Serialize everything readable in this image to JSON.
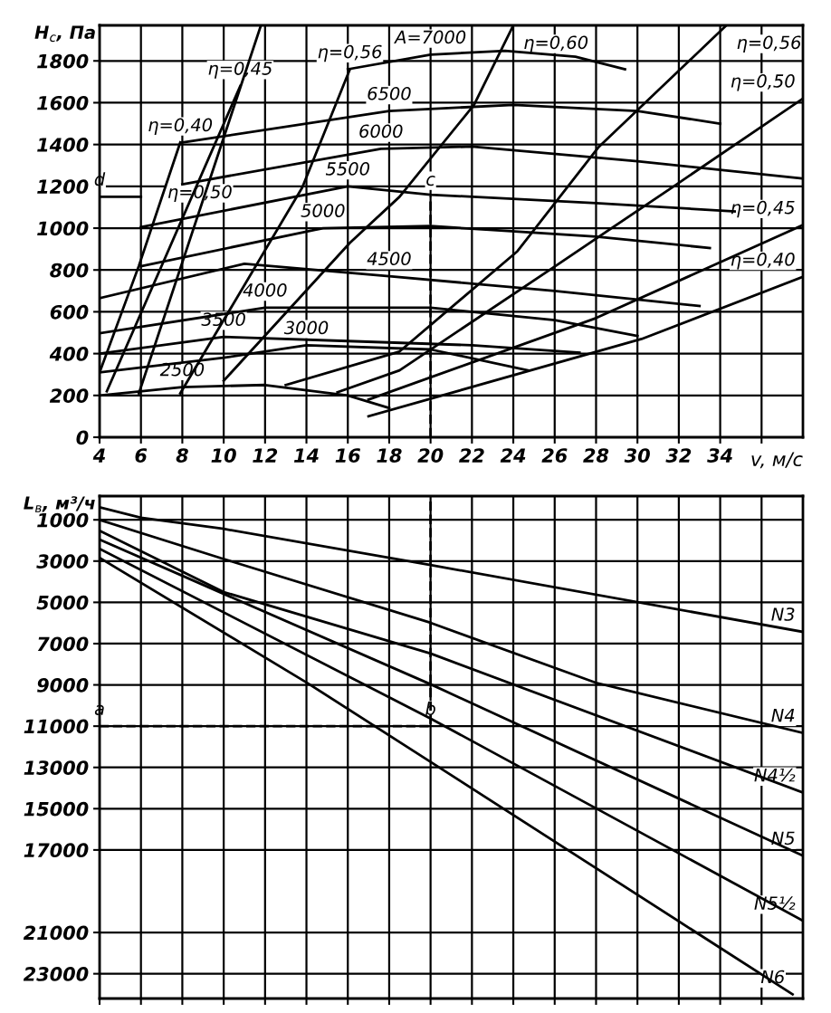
{
  "chart_data": [
    {
      "type": "line",
      "xlabel": "v, м/с",
      "ylabel": "H$_{с}$, Па",
      "xlim": [
        4,
        38
      ],
      "ylim": [
        0,
        1970
      ],
      "xticks": [
        4,
        6,
        8,
        10,
        12,
        14,
        16,
        18,
        20,
        22,
        24,
        26,
        28,
        30,
        32,
        34,
        {
          "value": 36,
          "label": null
        }
      ],
      "yticks": [
        0,
        200,
        400,
        600,
        800,
        1000,
        1200,
        1400,
        1600,
        1800
      ],
      "grid": true,
      "series": [
        {
          "color": "#000000",
          "x": [
            4,
            8,
            12,
            16,
            18
          ],
          "values": [
            200,
            240,
            250,
            200,
            140
          ]
        },
        {
          "color": "#000000",
          "x": [
            4,
            10,
            14,
            20,
            24.7
          ],
          "values": [
            310,
            380,
            440,
            420,
            320
          ]
        },
        {
          "color": "#000000",
          "x": [
            4,
            10,
            16,
            22,
            27.2
          ],
          "values": [
            400,
            480,
            460,
            440,
            405
          ]
        },
        {
          "color": "#000000",
          "x": [
            4,
            12,
            20,
            26,
            30
          ],
          "values": [
            497,
            620,
            620,
            560,
            484
          ]
        },
        {
          "color": "#000000",
          "x": [
            4,
            11,
            18,
            26,
            33
          ],
          "values": [
            665,
            830,
            770,
            700,
            628
          ]
        },
        {
          "color": "#000000",
          "x": [
            6,
            14.8,
            20,
            28,
            33.5
          ],
          "values": [
            818,
            1000,
            1010,
            960,
            905
          ]
        },
        {
          "color": "#000000",
          "x": [
            6,
            16,
            20,
            28,
            34.7
          ],
          "values": [
            1005,
            1200,
            1160,
            1120,
            1080
          ]
        },
        {
          "color": "#000000",
          "x": [
            8,
            17.6,
            22,
            30,
            37.9
          ],
          "values": [
            1210,
            1380,
            1390,
            1320,
            1238
          ]
        },
        {
          "color": "#000000",
          "x": [
            8,
            18,
            24,
            30,
            34
          ],
          "values": [
            1410,
            1560,
            1590,
            1560,
            1500
          ]
        },
        {
          "color": "#000000",
          "x": [
            16,
            20,
            23.6,
            27,
            29.4
          ],
          "values": [
            1760,
            1830,
            1848,
            1820,
            1760
          ]
        },
        {
          "color": "#000000",
          "x": [
            4,
            5.9,
            7.9
          ],
          "values": [
            310,
            820,
            1410
          ]
        },
        {
          "color": "#000000",
          "x": [
            4.35,
            10.8
          ],
          "values": [
            220,
            1680
          ]
        },
        {
          "color": "#000000",
          "x": [
            5.9,
            8.85,
            11.8
          ],
          "values": [
            210,
            1090,
            1970
          ]
        },
        {
          "color": "#000000",
          "x": [
            7.9,
            13.8,
            16.1
          ],
          "values": [
            210,
            1195,
            1760
          ]
        },
        {
          "color": "#000000",
          "x": [
            10,
            16.1,
            18.5,
            22.1,
            24
          ],
          "values": [
            270,
            930,
            1150,
            1590,
            1970
          ]
        },
        {
          "color": "#000000",
          "x": [
            13,
            18.5,
            24.2,
            28.1,
            34.3
          ],
          "values": [
            250,
            410,
            890,
            1385,
            1970
          ]
        },
        {
          "color": "#000000",
          "x": [
            15.5,
            18.5,
            26.2,
            31.9,
            38
          ],
          "values": [
            215,
            320,
            830,
            1210,
            1620
          ]
        },
        {
          "color": "#000000",
          "x": [
            17,
            28,
            38
          ],
          "values": [
            180,
            570,
            1015
          ]
        },
        {
          "color": "#000000",
          "x": [
            17,
            30.2,
            38
          ],
          "values": [
            100,
            470,
            767
          ]
        },
        {
          "color": "#000000",
          "line_style": "dashed",
          "x": [
            20,
            20
          ],
          "values": [
            0,
            1150
          ]
        },
        {
          "color": "#000000",
          "line_style": "solid",
          "x": [
            4,
            6
          ],
          "values": [
            1150,
            1150
          ]
        }
      ],
      "annotations": [
        {
          "text": "A=7000",
          "x": 20,
          "y": 1830
        },
        {
          "text": "6500",
          "x": 18,
          "y": 1560
        },
        {
          "text": "6000",
          "x": 17.6,
          "y": 1380
        },
        {
          "text": "5500",
          "x": 16,
          "y": 1200
        },
        {
          "text": "5000",
          "x": 14.8,
          "y": 1000
        },
        {
          "text": "4500",
          "x": 18,
          "y": 770
        },
        {
          "text": "4000",
          "x": 12,
          "y": 620
        },
        {
          "text": "3500",
          "x": 10,
          "y": 480
        },
        {
          "text": "3000",
          "x": 14,
          "y": 440
        },
        {
          "text": "2500",
          "x": 8,
          "y": 240
        },
        {
          "text": "η=0,40",
          "x": 7.9,
          "y": 1410
        },
        {
          "text": "η=0,45",
          "x": 10.8,
          "y": 1680
        },
        {
          "text": "η=0,50",
          "x": 8.85,
          "y": 1090
        },
        {
          "text": "η=0,56",
          "x": 16.1,
          "y": 1760
        },
        {
          "text": "η=0,60",
          "x": 24,
          "y": 1970
        },
        {
          "text": "η=0,56",
          "x": 34.3,
          "y": 1970
        },
        {
          "text": "η=0,50",
          "x": 38,
          "y": 1620
        },
        {
          "text": "η=0,45",
          "x": 38,
          "y": 1015
        },
        {
          "text": "η=0,40",
          "x": 38,
          "y": 767
        },
        {
          "text": "c",
          "x": 20,
          "y": 1150
        },
        {
          "text": "d",
          "x": 4,
          "y": 1150
        }
      ]
    },
    {
      "type": "line",
      "ylabel": "L$_{в}$, м³/ч",
      "xlim": [
        4,
        38
      ],
      "ylim": [
        24200,
        -150
      ],
      "tick_labels": "y",
      "xticks": [
        4,
        6,
        8,
        10,
        12,
        14,
        16,
        18,
        20,
        22,
        24,
        26,
        28,
        30,
        32,
        34,
        36
      ],
      "yticks": [
        1000,
        3000,
        5000,
        7000,
        9000,
        11000,
        13000,
        15000,
        17000,
        21000,
        23000
      ],
      "grid": true,
      "series": [
        {
          "color": "#000000",
          "x": [
            4,
            6,
            10,
            20,
            38
          ],
          "values": [
            390,
            900,
            1440,
            3190,
            6430
          ]
        },
        {
          "color": "#000000",
          "x": [
            4,
            10,
            20,
            28,
            38
          ],
          "values": [
            1000,
            2900,
            5990,
            8900,
            11330
          ]
        },
        {
          "color": "#000000",
          "x": [
            4,
            10,
            20,
            38
          ],
          "values": [
            1530,
            4500,
            7480,
            14220
          ]
        },
        {
          "color": "#000000",
          "x": [
            4,
            20,
            38
          ],
          "values": [
            1960,
            8970,
            17280
          ]
        },
        {
          "color": "#000000",
          "x": [
            4,
            20,
            38
          ],
          "values": [
            2400,
            10630,
            20430
          ]
        },
        {
          "color": "#000000",
          "x": [
            4,
            14,
            20,
            37.5
          ],
          "values": [
            2840,
            8880,
            12730,
            24000
          ]
        },
        {
          "color": "#000000",
          "line_style": "dashed",
          "x": [
            4,
            20,
            20
          ],
          "values": [
            11000,
            11000,
            0
          ]
        }
      ],
      "annotations": [
        {
          "text": "N3",
          "x": 38,
          "y": 6430
        },
        {
          "text": "N4",
          "x": 38,
          "y": 11330
        },
        {
          "text": "N4½",
          "x": 38,
          "y": 14220
        },
        {
          "text": "N5",
          "x": 38,
          "y": 17280
        },
        {
          "text": "N5½",
          "x": 38,
          "y": 20430
        },
        {
          "text": "N6",
          "x": 37.5,
          "y": 24000
        },
        {
          "text": "a",
          "x": 4,
          "y": 11000
        },
        {
          "text": "b",
          "x": 20,
          "y": 11000
        }
      ]
    }
  ]
}
